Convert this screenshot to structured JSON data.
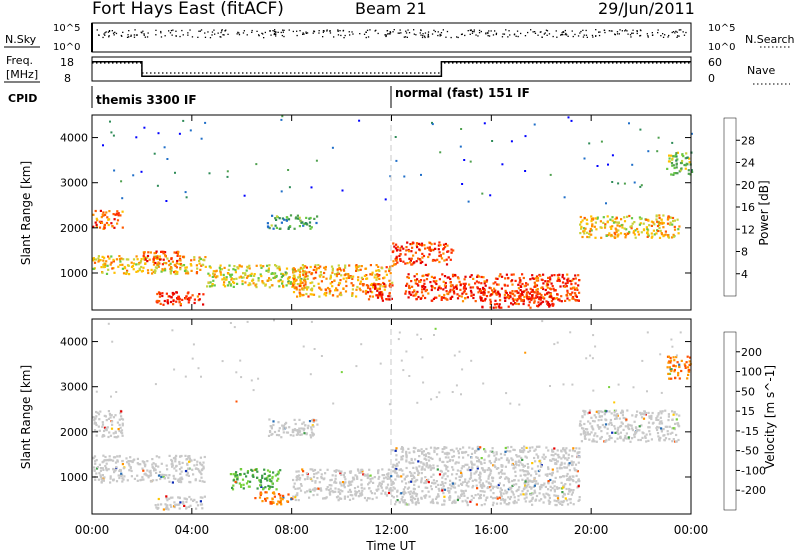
{
  "header": {
    "station": "Fort Hays East (fitACF)",
    "beam": "Beam 21",
    "date": "29/Jun/2011"
  },
  "top_panels": {
    "nsky_label": "N.Sky",
    "nsky_ticks": [
      "10^5",
      "10^0"
    ],
    "nsearch_label": "N.Search",
    "nsearch_ticks": [
      "10^5",
      "10^0"
    ],
    "freq_label_1": "Freq.",
    "freq_label_2": "[MHz]",
    "freq_ticks": [
      "18",
      "8"
    ],
    "nave_label": "Nave",
    "nave_ticks": [
      "60",
      "0"
    ],
    "cpid_label": "CPID",
    "cpid_segments": [
      {
        "label": "themis 3300 IF",
        "start_hour": 0,
        "end_hour": 12
      },
      {
        "label": "normal (fast) 151 IF",
        "start_hour": 12,
        "end_hour": 24
      }
    ],
    "freq_profile_mhz": [
      {
        "start_hour": 0,
        "end_hour": 2,
        "value": 16
      },
      {
        "start_hour": 2,
        "end_hour": 14,
        "value": 10
      },
      {
        "start_hour": 14,
        "end_hour": 24,
        "value": 16
      }
    ],
    "nave_profile": [
      {
        "start_hour": 0,
        "end_hour": 2,
        "value": 45
      },
      {
        "start_hour": 2,
        "end_hour": 14,
        "value": 20
      },
      {
        "start_hour": 14,
        "end_hour": 24,
        "value": 45
      }
    ]
  },
  "colors": {
    "power": [
      "#0000ff",
      "#1e6ec8",
      "#2e8b57",
      "#4ea04e",
      "#66c843",
      "#c8d23c",
      "#ffc000",
      "#ff9000",
      "#ff5a00",
      "#ff2800",
      "#e60000"
    ],
    "velocity": [
      "#e60000",
      "#ff5000",
      "#ff9600",
      "#ffc800",
      "#c8c8c8",
      "#78d23c",
      "#3c9b46",
      "#286eb4",
      "#0a28b4"
    ],
    "divider": "#c8c8c8"
  },
  "chart_data": [
    {
      "type": "heatmap",
      "name": "power",
      "ylabel": "Slant Range [km]",
      "colorbar_label": "Power [dB]",
      "colorbar_ticks": [
        "28",
        "24",
        "20",
        "16",
        "12",
        "8",
        "4"
      ],
      "ylim": [
        180,
        4500
      ],
      "y_ticks": [
        1000,
        2000,
        3000,
        4000
      ],
      "xlim_hours": [
        0,
        24
      ],
      "bands": [
        {
          "start_hour": 0.0,
          "end_hour": 4.5,
          "range_km": [
            1000,
            1400
          ],
          "power_db": 18
        },
        {
          "start_hour": 0.0,
          "end_hour": 1.2,
          "range_km": [
            2000,
            2400
          ],
          "power_db": 24
        },
        {
          "start_hour": 2.0,
          "end_hour": 3.5,
          "range_km": [
            1200,
            1500
          ],
          "power_db": 26
        },
        {
          "start_hour": 2.5,
          "end_hour": 4.5,
          "range_km": [
            300,
            600
          ],
          "power_db": 28
        },
        {
          "start_hour": 4.5,
          "end_hour": 8.5,
          "range_km": [
            700,
            1200
          ],
          "power_db": 16
        },
        {
          "start_hour": 7.0,
          "end_hour": 9.0,
          "range_km": [
            2000,
            2300
          ],
          "power_db": 8
        },
        {
          "start_hour": 8.0,
          "end_hour": 12.0,
          "range_km": [
            500,
            1200
          ],
          "power_db": 20
        },
        {
          "start_hour": 11.0,
          "end_hour": 12.0,
          "range_km": [
            400,
            800
          ],
          "power_db": 28
        },
        {
          "start_hour": 12.0,
          "end_hour": 14.5,
          "range_km": [
            1200,
            1700
          ],
          "power_db": 26
        },
        {
          "start_hour": 12.5,
          "end_hour": 19.5,
          "range_km": [
            400,
            1000
          ],
          "power_db": 26
        },
        {
          "start_hour": 15.5,
          "end_hour": 18.5,
          "range_km": [
            250,
            600
          ],
          "power_db": 28
        },
        {
          "start_hour": 19.5,
          "end_hour": 23.5,
          "range_km": [
            1800,
            2300
          ],
          "power_db": 18
        },
        {
          "start_hour": 23.0,
          "end_hour": 24.0,
          "range_km": [
            3200,
            3700
          ],
          "power_db": 12
        }
      ]
    },
    {
      "type": "heatmap",
      "name": "velocity",
      "ylabel": "Slant Range [km]",
      "xlabel": "Time UT",
      "colorbar_label": "Velocity [m s^-1]",
      "colorbar_ticks": [
        "200",
        "100",
        "50",
        "15",
        "-15",
        "-50",
        "-100",
        "-200"
      ],
      "ylim": [
        180,
        4500
      ],
      "y_ticks": [
        1000,
        2000,
        3000,
        4000
      ],
      "xlim_hours": [
        0,
        24
      ],
      "x_ticks": [
        "00:00",
        "04:00",
        "08:00",
        "12:00",
        "16:00",
        "20:00",
        "00:00"
      ],
      "bands": [
        {
          "start_hour": 0.0,
          "end_hour": 4.5,
          "range_km": [
            900,
            1500
          ],
          "velocity_ms": 0
        },
        {
          "start_hour": 0.0,
          "end_hour": 1.2,
          "range_km": [
            1900,
            2500
          ],
          "velocity_ms": 0
        },
        {
          "start_hour": 2.5,
          "end_hour": 4.5,
          "range_km": [
            300,
            600
          ],
          "velocity_ms": 0
        },
        {
          "start_hour": 5.5,
          "end_hour": 7.5,
          "range_km": [
            750,
            1200
          ],
          "velocity_ms": 40
        },
        {
          "start_hour": 7.0,
          "end_hour": 9.0,
          "range_km": [
            1900,
            2300
          ],
          "velocity_ms": 0
        },
        {
          "start_hour": 6.5,
          "end_hour": 8.0,
          "range_km": [
            400,
            700
          ],
          "velocity_ms": -80
        },
        {
          "start_hour": 8.0,
          "end_hour": 12.0,
          "range_km": [
            500,
            1200
          ],
          "velocity_ms": 0
        },
        {
          "start_hour": 12.0,
          "end_hour": 19.5,
          "range_km": [
            400,
            1700
          ],
          "velocity_ms": 0
        },
        {
          "start_hour": 19.5,
          "end_hour": 23.5,
          "range_km": [
            1800,
            2500
          ],
          "velocity_ms": 0
        },
        {
          "start_hour": 23.0,
          "end_hour": 24.0,
          "range_km": [
            3200,
            3700
          ],
          "velocity_ms": -40
        }
      ]
    }
  ]
}
